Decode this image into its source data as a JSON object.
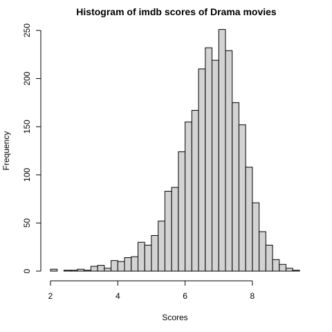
{
  "chart_data": {
    "type": "bar",
    "title": "Histogram of imdb scores of Drama movies",
    "xlabel": "Scores",
    "ylabel": "Frequency",
    "bin_width": 0.2,
    "bin_start": 2.0,
    "xlim": [
      2.0,
      9.4
    ],
    "ylim": [
      0,
      250
    ],
    "x_ticks": [
      2,
      4,
      6,
      8
    ],
    "y_ticks": [
      0,
      50,
      100,
      150,
      200,
      250
    ],
    "values": [
      2,
      0,
      1,
      1,
      2,
      1,
      5,
      6,
      3,
      11,
      10,
      14,
      15,
      30,
      27,
      37,
      52,
      83,
      87,
      124,
      155,
      167,
      210,
      232,
      219,
      251,
      229,
      175,
      152,
      108,
      71,
      41,
      27,
      12,
      7,
      3,
      1
    ],
    "bar_color": "#d3d3d3",
    "grid": false,
    "legend": "none"
  }
}
